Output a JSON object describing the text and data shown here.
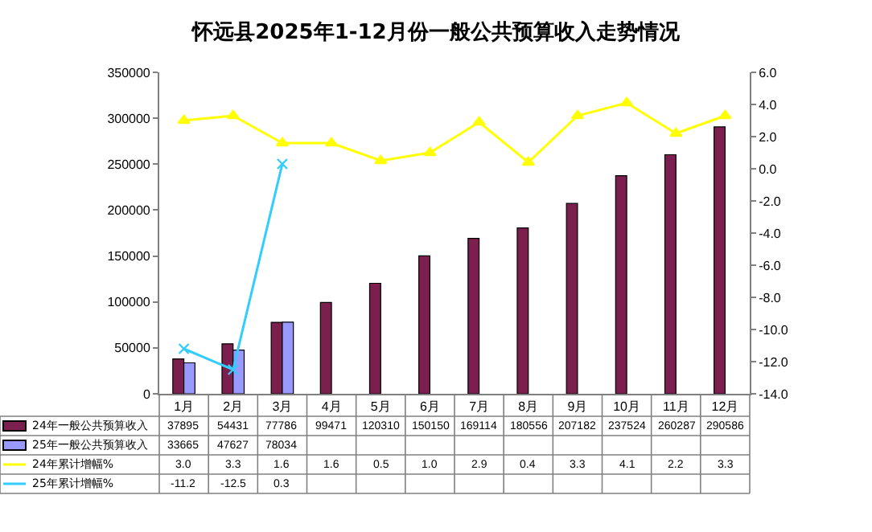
{
  "chart_data": {
    "type": "bar",
    "title": "怀远县2025年1-12月份一般公共预算收入走势情况",
    "categories": [
      "1月",
      "2月",
      "3月",
      "4月",
      "5月",
      "6月",
      "7月",
      "8月",
      "9月",
      "10月",
      "11月",
      "12月"
    ],
    "series": [
      {
        "name": "24年一般公共预算收入",
        "color": "#7b1f4f",
        "values": [
          37895,
          54431,
          77786,
          99471,
          120310,
          150150,
          169114,
          180556,
          207182,
          237524,
          260287,
          290586
        ],
        "value_labels": [
          "37895",
          "54431",
          "77786",
          "99471",
          "120310",
          "150150",
          "169114",
          "180556",
          "207182",
          "237524",
          "260287",
          "290586"
        ]
      },
      {
        "name": "25年一般公共预算收入",
        "color": "#9999ff",
        "values": [
          33665,
          47627,
          78034,
          null,
          null,
          null,
          null,
          null,
          null,
          null,
          null,
          null
        ],
        "value_labels": [
          "33665",
          "47627",
          "78034",
          null,
          null,
          null,
          null,
          null,
          null,
          null,
          null,
          null
        ]
      },
      {
        "name": "24年累计增幅%",
        "type": "line",
        "axis": "y2",
        "marker": "triangle",
        "color": "#ffff00",
        "values": [
          3.0,
          3.3,
          1.6,
          1.6,
          0.5,
          1.0,
          2.9,
          0.4,
          3.3,
          4.1,
          2.2,
          3.3
        ],
        "value_labels": [
          "3.0",
          "3.3",
          "1.6",
          "1.6",
          "0.5",
          "1.0",
          "2.9",
          "0.4",
          "3.3",
          "4.1",
          "2.2",
          "3.3"
        ]
      },
      {
        "name": "25年累计增幅%",
        "type": "line",
        "axis": "y2",
        "marker": "cross",
        "color": "#33ccff",
        "values": [
          -11.2,
          -12.5,
          0.3,
          null,
          null,
          null,
          null,
          null,
          null,
          null,
          null,
          null
        ],
        "value_labels": [
          "-11.2",
          "-12.5",
          "0.3",
          null,
          null,
          null,
          null,
          null,
          null,
          null,
          null,
          null
        ]
      }
    ],
    "ylim": [
      0,
      350000
    ],
    "yticks": [
      0,
      50000,
      100000,
      150000,
      200000,
      250000,
      300000,
      350000
    ],
    "y2lim": [
      -14,
      6
    ],
    "y2ticks": [
      {
        "value": 6,
        "label": "6.0"
      },
      {
        "value": 4,
        "label": "4.0"
      },
      {
        "value": 2,
        "label": "2.0"
      },
      {
        "value": 0,
        "label": "0.0"
      },
      {
        "value": -2,
        "label": "-2.0"
      },
      {
        "value": -4,
        "label": "-4.0"
      },
      {
        "value": -6,
        "label": "-6.0"
      },
      {
        "value": -8,
        "label": "-8.0"
      },
      {
        "value": -10,
        "label": "-10.0"
      },
      {
        "value": -12,
        "label": "-12.0"
      },
      {
        "value": -14,
        "label": "-14.0"
      }
    ],
    "legend": "bottom left"
  }
}
